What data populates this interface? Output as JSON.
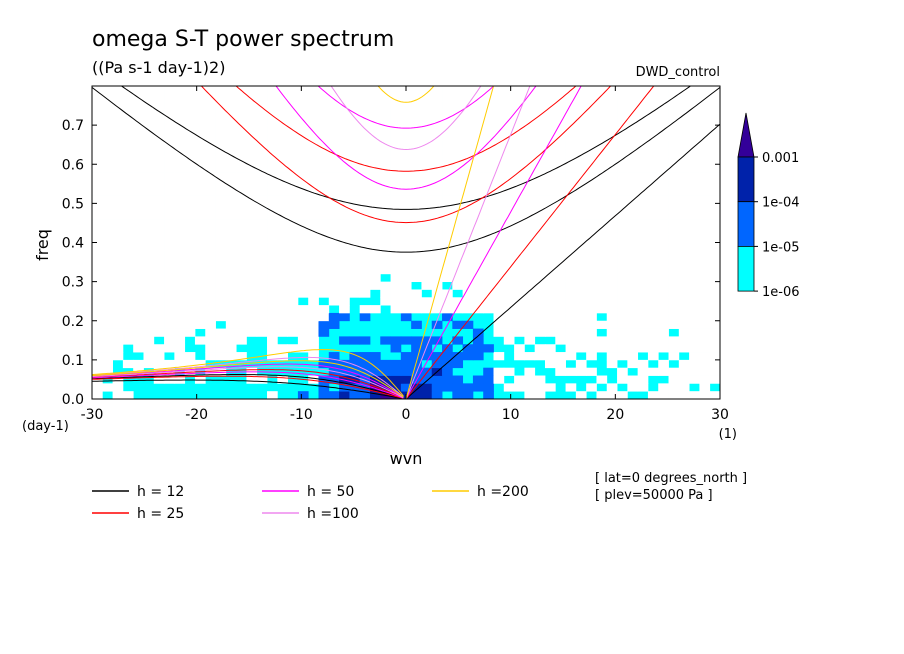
{
  "chart_data": {
    "type": "heatmap",
    "title": "omega S-T power spectrum",
    "subtitle": "((Pa s-1 day-1)2)",
    "experiment": "DWD_control",
    "xlabel": "wvn",
    "ylabel": "freq",
    "x_unit": "(1)",
    "y_unit": "(day-1)",
    "xlim": [
      -30,
      30
    ],
    "ylim": [
      0,
      0.8
    ],
    "x_ticks": [
      "-30",
      "-20",
      "-10",
      "0",
      "10",
      "20",
      "30"
    ],
    "x_tick_values": [
      -30,
      -20,
      -10,
      0,
      10,
      20,
      30
    ],
    "y_ticks": [
      "0.0",
      "0.1",
      "0.2",
      "0.3",
      "0.4",
      "0.5",
      "0.6",
      "0.7"
    ],
    "y_tick_values": [
      0.0,
      0.1,
      0.2,
      0.3,
      0.4,
      0.5,
      0.6,
      0.7
    ],
    "colorbar": {
      "labels": [
        "0.001",
        "1e-04",
        "1e-05",
        "1e-06"
      ],
      "levels": [
        {
          "from": 1e-06,
          "to": 1e-05,
          "color": "#00ffff"
        },
        {
          "from": 1e-05,
          "to": 0.0001,
          "color": "#0066ff"
        },
        {
          "from": 0.0001,
          "to": 0.001,
          "color": "#0022aa"
        },
        {
          "from": 0.001,
          "to": null,
          "color": "#330099"
        }
      ]
    },
    "contour_levels": [
      1e-06,
      1e-05,
      0.0001,
      0.001
    ],
    "legend": [
      {
        "label": "h = 12",
        "color": "#000000"
      },
      {
        "label": "h = 25",
        "color": "#ff0000"
      },
      {
        "label": "h = 50",
        "color": "#ff00ff"
      },
      {
        "label": "h =100",
        "color": "#ee88ee"
      },
      {
        "label": "h =200",
        "color": "#ffcc00"
      }
    ],
    "dispersion_curves": [
      {
        "name": "h = 12",
        "equivalent_depth": 12,
        "color": "#000000"
      },
      {
        "name": "h = 25",
        "equivalent_depth": 25,
        "color": "#ff0000"
      },
      {
        "name": "h = 50",
        "equivalent_depth": 50,
        "color": "#ff00ff"
      },
      {
        "name": "h =100",
        "equivalent_depth": 100,
        "color": "#ee88ee"
      },
      {
        "name": "h =200",
        "equivalent_depth": 200,
        "color": "#ffcc00"
      }
    ],
    "annotations": [
      "[ lat=0 degrees_north ]",
      "[ plev=50000 Pa ]"
    ]
  }
}
